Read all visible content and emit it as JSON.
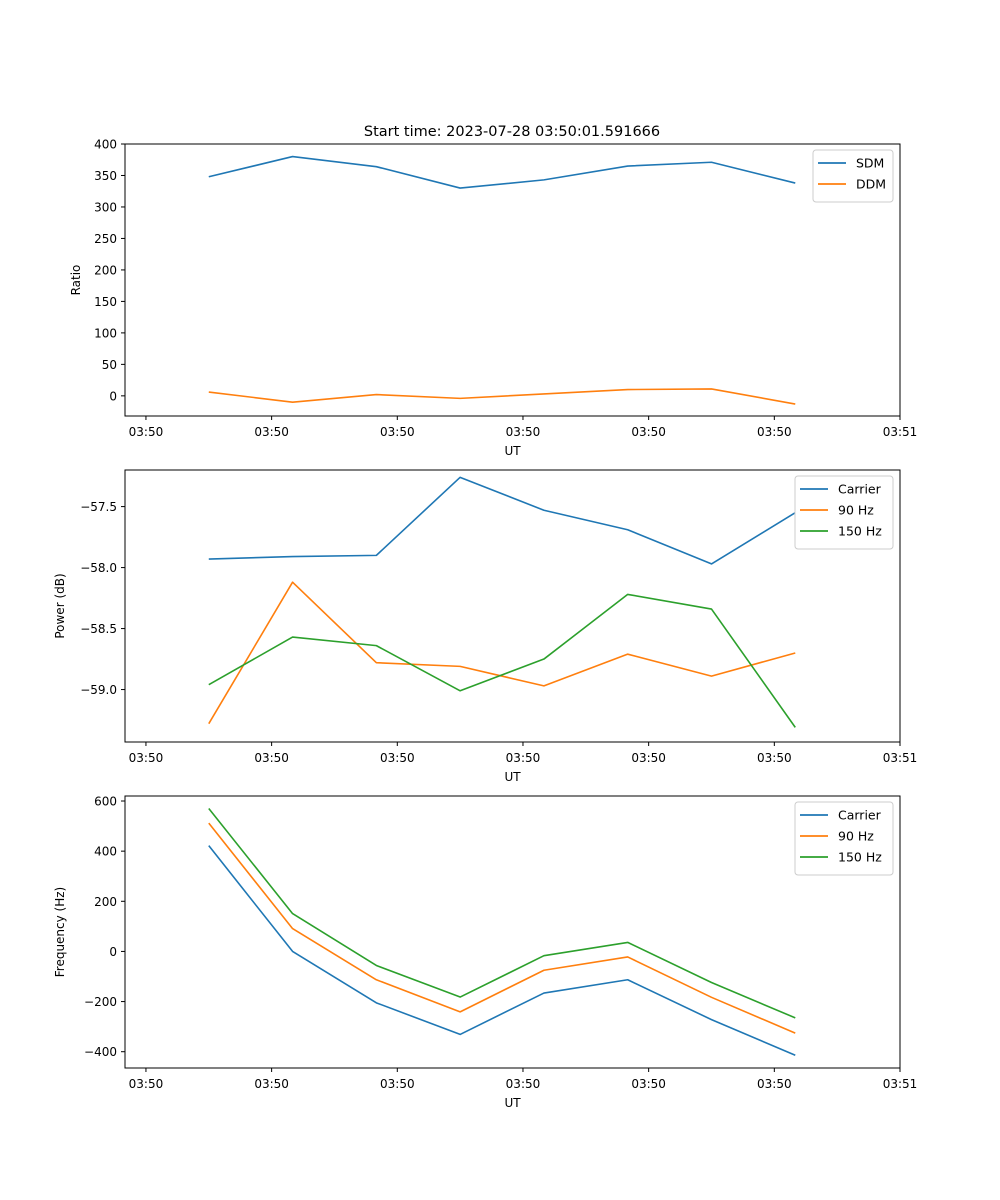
{
  "title": "Start time: 2023-07-28 03:50:01.591666",
  "chart_data": [
    {
      "type": "line",
      "xlabel": "UT",
      "ylabel": "Ratio",
      "xlim": [
        0,
        9.25
      ],
      "ylim": [
        -32,
        400
      ],
      "xticks": [
        0.25,
        1.75,
        3.25,
        4.75,
        6.25,
        7.75,
        9.25
      ],
      "xtick_labels": [
        "03:50",
        "03:50",
        "03:50",
        "03:50",
        "03:50",
        "03:50",
        "03:51"
      ],
      "yticks": [
        0,
        50,
        100,
        150,
        200,
        250,
        300,
        350,
        400
      ],
      "ytick_labels": [
        "0",
        "50",
        "100",
        "150",
        "200",
        "250",
        "300",
        "350",
        "400"
      ],
      "legend_position": "top-right",
      "x": [
        1,
        2,
        3,
        4,
        5,
        6,
        7,
        8
      ],
      "series": [
        {
          "name": "SDM",
          "color": "#1f77b4",
          "values": [
            348,
            380,
            364,
            330,
            343,
            365,
            371,
            338
          ]
        },
        {
          "name": "DDM",
          "color": "#ff7f0e",
          "values": [
            6,
            -10,
            2,
            -4,
            3,
            10,
            11,
            -13
          ]
        }
      ]
    },
    {
      "type": "line",
      "xlabel": "UT",
      "ylabel": "Power (dB)",
      "xlim": [
        0,
        9.25
      ],
      "ylim": [
        -59.43,
        -57.2
      ],
      "xticks": [
        0.25,
        1.75,
        3.25,
        4.75,
        6.25,
        7.75,
        9.25
      ],
      "xtick_labels": [
        "03:50",
        "03:50",
        "03:50",
        "03:50",
        "03:50",
        "03:50",
        "03:51"
      ],
      "yticks": [
        -59.0,
        -58.5,
        -58.0,
        -57.5
      ],
      "ytick_labels": [
        "−59.0",
        "−58.5",
        "−58.0",
        "−57.5"
      ],
      "legend_position": "top-right",
      "x": [
        1,
        2,
        3,
        4,
        5,
        6,
        7,
        8
      ],
      "series": [
        {
          "name": "Carrier",
          "color": "#1f77b4",
          "values": [
            -57.93,
            -57.91,
            -57.9,
            -57.26,
            -57.53,
            -57.69,
            -57.97,
            -57.55
          ]
        },
        {
          "name": "90 Hz",
          "color": "#ff7f0e",
          "values": [
            -59.28,
            -58.12,
            -58.78,
            -58.81,
            -58.97,
            -58.71,
            -58.89,
            -58.7
          ]
        },
        {
          "name": "150 Hz",
          "color": "#2ca02c",
          "values": [
            -58.96,
            -58.57,
            -58.64,
            -59.01,
            -58.75,
            -58.22,
            -58.34,
            -59.31
          ]
        }
      ]
    },
    {
      "type": "line",
      "xlabel": "UT",
      "ylabel": "Frequency (Hz)",
      "xlim": [
        0,
        9.25
      ],
      "ylim": [
        -465,
        620
      ],
      "xticks": [
        0.25,
        1.75,
        3.25,
        4.75,
        6.25,
        7.75,
        9.25
      ],
      "xtick_labels": [
        "03:50",
        "03:50",
        "03:50",
        "03:50",
        "03:50",
        "03:50",
        "03:51"
      ],
      "yticks": [
        -400,
        -200,
        0,
        200,
        400,
        600
      ],
      "ytick_labels": [
        "−400",
        "−200",
        "0",
        "200",
        "400",
        "600"
      ],
      "legend_position": "top-right",
      "x": [
        1,
        2,
        3,
        4,
        5,
        6,
        7,
        8
      ],
      "series": [
        {
          "name": "Carrier",
          "color": "#1f77b4",
          "values": [
            422,
            0,
            -205,
            -331,
            -166,
            -113,
            -272,
            -414
          ]
        },
        {
          "name": "90 Hz",
          "color": "#ff7f0e",
          "values": [
            512,
            91,
            -113,
            -241,
            -75,
            -22,
            -183,
            -326
          ]
        },
        {
          "name": "150 Hz",
          "color": "#2ca02c",
          "values": [
            570,
            151,
            -56,
            -182,
            -17,
            36,
            -124,
            -265
          ]
        }
      ]
    }
  ]
}
